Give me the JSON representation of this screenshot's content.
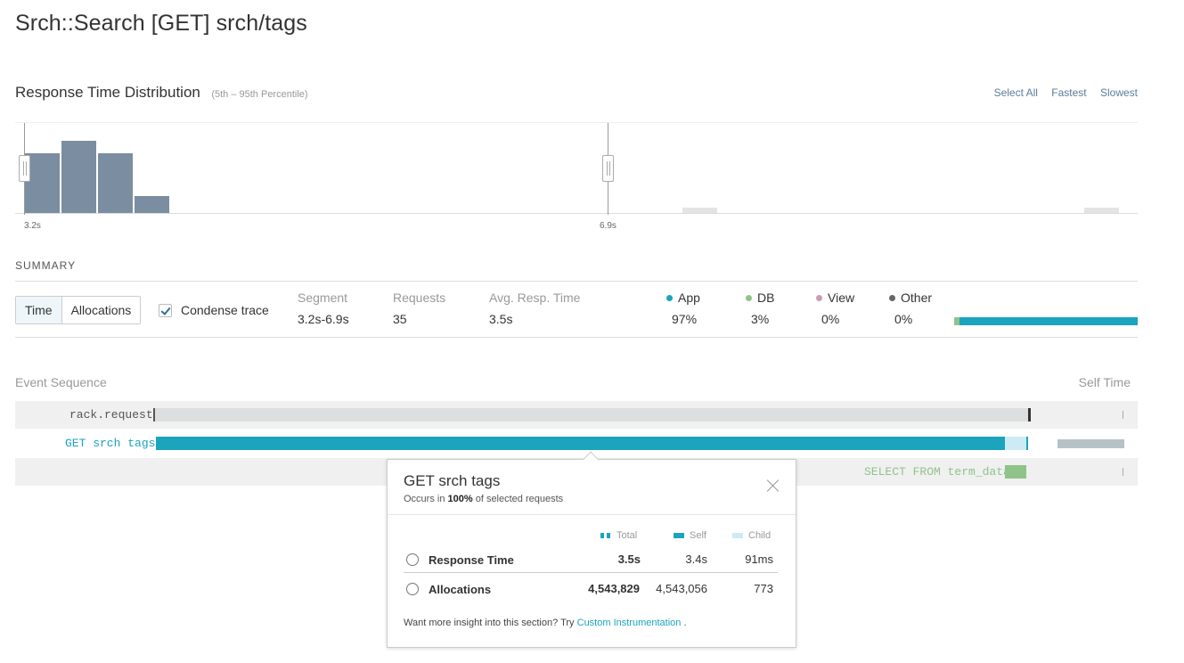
{
  "page": {
    "title": "Srch::Search [GET] srch/tags"
  },
  "rtd": {
    "title": "Response Time Distribution",
    "subtitle": "(5th – 95th Percentile)",
    "links": [
      "Select All",
      "Fastest",
      "Slowest"
    ],
    "min_label": "3.2s",
    "max_label": "6.9s"
  },
  "chart_data": {
    "type": "bar",
    "title": "Response Time Distribution",
    "subtitle": "(5th – 95th Percentile)",
    "categories": [
      "3.2s",
      "",
      "",
      "",
      "",
      "",
      "",
      "",
      "",
      "",
      "",
      "",
      "",
      "",
      "",
      "",
      "",
      "",
      "",
      "",
      "",
      "",
      "",
      "",
      "",
      "",
      "",
      "",
      "",
      ""
    ],
    "values": [
      68,
      82,
      68,
      20,
      1,
      1,
      1,
      1,
      1,
      1,
      1,
      1,
      1,
      1,
      1,
      1,
      0,
      0,
      7,
      0,
      0,
      0,
      0,
      0,
      0,
      0,
      0,
      0,
      0,
      7
    ],
    "selected_count": 16,
    "tick_labels": [
      "3.2s",
      "6.9s"
    ],
    "colors": {
      "selected": "#7b8da0",
      "unselected": "#e2e4e6"
    }
  },
  "summary": {
    "label": "SUMMARY",
    "toggle": [
      "Time",
      "Allocations"
    ],
    "condense_label": "Condense trace",
    "segment": {
      "header": "Segment",
      "value": "3.2s-6.9s"
    },
    "requests": {
      "header": "Requests",
      "value": "35"
    },
    "avg": {
      "header": "Avg. Resp. Time",
      "value": "3.5s"
    },
    "breakdown": [
      {
        "name": "App",
        "value": "97%",
        "pct": 97,
        "color": "#1aa4bd"
      },
      {
        "name": "DB",
        "value": "3%",
        "pct": 3,
        "color": "#8fc38a"
      },
      {
        "name": "View",
        "value": "0%",
        "pct": 0,
        "color": "#c99bb4"
      },
      {
        "name": "Other",
        "value": "0%",
        "pct": 0,
        "color": "#666666"
      }
    ]
  },
  "events": {
    "header": "Event Sequence",
    "self_header": "Self Time",
    "rows": [
      {
        "name": "rack.request",
        "color": "#555555",
        "bar_color": "#dcdedf",
        "bar_start": 0.0,
        "bar_end": 1.0,
        "self": 0.0
      },
      {
        "name": "GET srch tags",
        "color": "#1aa4bd",
        "bar_color": "#1aa4bd",
        "bar_start": 0.0,
        "bar_end": 0.975,
        "self": 0.97
      },
      {
        "name": "SELECT FROM term_data",
        "color": "#8fc38a",
        "bar_color": "#8fc38a",
        "bar_start": 0.975,
        "bar_end": 1.0,
        "self": 0.03
      }
    ]
  },
  "popover": {
    "title": "GET srch tags",
    "occurs_prefix": "Occurs in ",
    "occurs_pct": "100%",
    "occurs_suffix": " of selected requests",
    "legend": [
      "Total",
      "Self",
      "Child"
    ],
    "rows": [
      {
        "label": "Response Time",
        "total": "3.5s",
        "self": "3.4s",
        "child": "91ms",
        "icon": "stopwatch-icon"
      },
      {
        "label": "Allocations",
        "total": "4,543,829",
        "self": "4,543,056",
        "child": "773",
        "icon": "pie-icon"
      }
    ],
    "footer_prefix": "Want more insight into this section? Try ",
    "footer_link": "Custom Instrumentation",
    "footer_suffix": " ."
  }
}
